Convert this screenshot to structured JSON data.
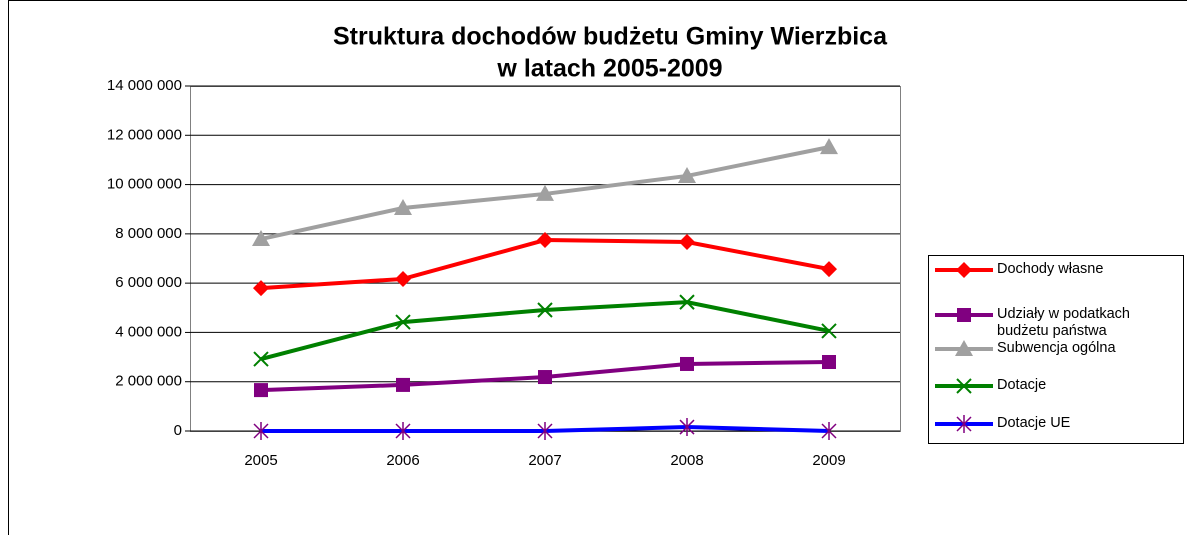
{
  "chart_data": {
    "type": "line",
    "title": [
      "Struktura dochodów budżetu Gminy Wierzbica",
      "w latach 2005-2009"
    ],
    "categories": [
      "2005",
      "2006",
      "2007",
      "2008",
      "2009"
    ],
    "series": [
      {
        "name": "Dochody własne",
        "color": "#ff0000",
        "marker": "diamond",
        "marker_color": "#ff0000",
        "values": [
          5800000,
          6170000,
          7750000,
          7670000,
          6570000
        ]
      },
      {
        "name": "Udziały w podatkach budżetu państwa",
        "color": "#800080",
        "marker": "square",
        "marker_color": "#800080",
        "values": [
          1660000,
          1870000,
          2190000,
          2720000,
          2800000
        ]
      },
      {
        "name": "Subwencja ogólna",
        "color": "#a0a0a0",
        "marker": "triangle",
        "marker_color": "#a0a0a0",
        "values": [
          7790000,
          9050000,
          9620000,
          10350000,
          11520000
        ]
      },
      {
        "name": "Dotacje",
        "color": "#008000",
        "marker": "x",
        "marker_color": "#008000",
        "values": [
          2920000,
          4420000,
          4910000,
          5230000,
          4060000
        ]
      },
      {
        "name": "Dotacje UE",
        "color": "#0000ff",
        "marker": "star",
        "marker_color": "#800080",
        "values": [
          0,
          0,
          0,
          160000,
          0
        ]
      }
    ],
    "ylim": [
      0,
      14000000
    ],
    "yticks": [
      0,
      {
        "value": 2000000,
        "label": "2 000 000"
      },
      {
        "value": 4000000,
        "label": "4 000 000"
      },
      {
        "value": 6000000,
        "label": "6 000 000"
      },
      {
        "value": 8000000,
        "label": "8 000 000"
      },
      {
        "value": 10000000,
        "label": "10 000 000"
      },
      {
        "value": 12000000,
        "label": "12 000 000"
      },
      {
        "value": 14000000,
        "label": "14 000 000"
      }
    ],
    "grid": true,
    "legend": "right"
  }
}
